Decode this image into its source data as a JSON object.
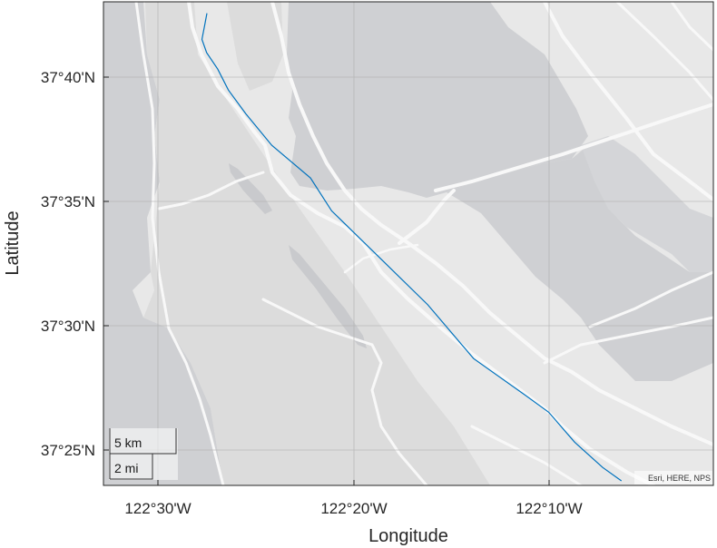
{
  "axes": {
    "xlabel": "Longitude",
    "ylabel": "Latitude",
    "x_ticks": [
      "122°30'W",
      "122°20'W",
      "122°10'W"
    ],
    "y_ticks": [
      "37°40'N",
      "37°35'N",
      "37°30'N",
      "37°25'N"
    ]
  },
  "scale_bar": {
    "km_label": "5 km",
    "mi_label": "2 mi"
  },
  "attribution": "Esri, HERE, NPS",
  "colors": {
    "land": "#e8e8e8",
    "park": "#d9d9d9",
    "water": "#cfd0d3",
    "road": "#f7f7f7",
    "track": "#0072bd",
    "grid": "#b0b0b0",
    "axis": "#262626"
  },
  "map": {
    "basemap": "grey canvas (San Francisco Peninsula)",
    "grid": true,
    "track_points_lon_lat": [
      [
        -122.4582,
        37.7095
      ],
      [
        -122.46,
        37.702
      ],
      [
        -122.4625,
        37.692
      ],
      [
        -122.4585,
        37.683
      ],
      [
        -122.449,
        37.672
      ],
      [
        -122.44,
        37.658
      ],
      [
        -122.425,
        37.642
      ],
      [
        -122.403,
        37.621
      ],
      [
        -122.37,
        37.599
      ],
      [
        -122.352,
        37.577
      ],
      [
        -122.309,
        37.544
      ],
      [
        -122.27,
        37.514
      ],
      [
        -122.231,
        37.478
      ],
      [
        -122.188,
        37.454
      ],
      [
        -122.167,
        37.442
      ],
      [
        -122.145,
        37.422
      ],
      [
        -122.121,
        37.405
      ],
      [
        -122.105,
        37.396
      ]
    ]
  }
}
